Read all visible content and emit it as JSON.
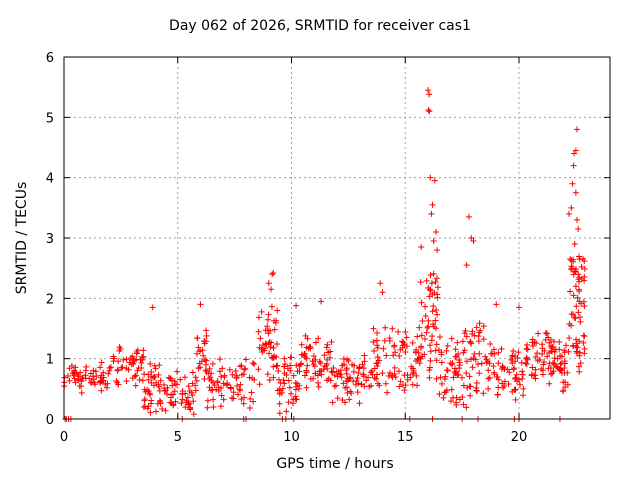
{
  "chart_data": {
    "type": "scatter",
    "title": "Day 062 of 2026, SRMTID for receiver cas1",
    "xlabel": "GPS time / hours",
    "ylabel": "SRMTID / TECUs",
    "xlim": [
      0,
      24
    ],
    "ylim": [
      0,
      6
    ],
    "xticks": [
      0,
      5,
      10,
      15,
      20
    ],
    "yticks": [
      0,
      1,
      2,
      3,
      4,
      5,
      6
    ],
    "grid": true,
    "marker": "+",
    "color": "#ff0000",
    "segments": [
      {
        "x0": 0.0,
        "x1": 2.0,
        "base": 0.65,
        "spread": 0.35,
        "n": 60
      },
      {
        "x0": 2.0,
        "x1": 3.5,
        "base": 0.85,
        "spread": 0.5,
        "n": 50
      },
      {
        "x0": 3.5,
        "x1": 4.2,
        "base": 0.5,
        "spread": 0.8,
        "n": 35
      },
      {
        "x0": 4.2,
        "x1": 5.8,
        "base": 0.35,
        "spread": 0.5,
        "n": 60
      },
      {
        "x0": 5.8,
        "x1": 6.3,
        "base": 1.0,
        "spread": 0.8,
        "n": 25
      },
      {
        "x0": 6.3,
        "x1": 8.5,
        "base": 0.55,
        "spread": 0.6,
        "n": 70
      },
      {
        "x0": 8.5,
        "x1": 9.4,
        "base": 1.1,
        "spread": 1.2,
        "n": 45
      },
      {
        "x0": 9.4,
        "x1": 10.4,
        "base": 0.5,
        "spread": 0.8,
        "n": 45
      },
      {
        "x0": 10.4,
        "x1": 11.8,
        "base": 0.9,
        "spread": 0.7,
        "n": 60
      },
      {
        "x0": 11.8,
        "x1": 13.5,
        "base": 0.6,
        "spread": 0.6,
        "n": 65
      },
      {
        "x0": 13.5,
        "x1": 15.6,
        "base": 0.9,
        "spread": 0.9,
        "n": 80
      },
      {
        "x0": 15.6,
        "x1": 16.5,
        "base": 1.4,
        "spread": 1.6,
        "n": 55
      },
      {
        "x0": 16.5,
        "x1": 17.5,
        "base": 0.7,
        "spread": 1.0,
        "n": 45
      },
      {
        "x0": 17.5,
        "x1": 18.5,
        "base": 0.8,
        "spread": 1.2,
        "n": 45
      },
      {
        "x0": 18.5,
        "x1": 20.2,
        "base": 0.7,
        "spread": 0.7,
        "n": 65
      },
      {
        "x0": 20.2,
        "x1": 21.6,
        "base": 0.9,
        "spread": 0.7,
        "n": 60
      },
      {
        "x0": 21.6,
        "x1": 22.2,
        "base": 0.8,
        "spread": 0.7,
        "n": 30
      },
      {
        "x0": 22.2,
        "x1": 22.9,
        "base": 1.6,
        "spread": 1.8,
        "n": 60
      }
    ],
    "peaks": [
      [
        16.0,
        5.45
      ],
      [
        16.05,
        5.38
      ],
      [
        16.02,
        5.12
      ],
      [
        16.06,
        5.1
      ],
      [
        16.1,
        4.0
      ],
      [
        16.3,
        3.95
      ],
      [
        16.2,
        3.55
      ],
      [
        16.15,
        3.4
      ],
      [
        16.35,
        3.1
      ],
      [
        16.25,
        2.95
      ],
      [
        15.7,
        2.85
      ],
      [
        16.4,
        2.8
      ],
      [
        17.8,
        3.35
      ],
      [
        17.9,
        3.0
      ],
      [
        18.0,
        2.95
      ],
      [
        17.7,
        2.55
      ],
      [
        9.2,
        2.42
      ],
      [
        9.15,
        2.4
      ],
      [
        9.0,
        2.25
      ],
      [
        9.1,
        2.15
      ],
      [
        13.9,
        2.25
      ],
      [
        14.0,
        2.1
      ],
      [
        11.3,
        1.95
      ],
      [
        10.2,
        1.88
      ],
      [
        3.9,
        1.85
      ],
      [
        6.0,
        1.9
      ],
      [
        19.0,
        1.9
      ],
      [
        20.0,
        1.85
      ],
      [
        22.55,
        4.8
      ],
      [
        22.5,
        4.45
      ],
      [
        22.42,
        4.4
      ],
      [
        22.4,
        4.2
      ],
      [
        22.35,
        3.9
      ],
      [
        22.5,
        3.75
      ],
      [
        22.3,
        3.5
      ],
      [
        22.55,
        3.3
      ],
      [
        22.2,
        3.4
      ],
      [
        22.6,
        3.15
      ],
      [
        22.45,
        2.9
      ],
      [
        22.25,
        2.65
      ],
      [
        22.6,
        2.4
      ],
      [
        22.5,
        2.2
      ],
      [
        22.4,
        2.05
      ],
      [
        22.65,
        1.95
      ]
    ],
    "zeros": [
      0.05,
      0.1,
      0.2,
      0.3,
      5.2,
      7.9,
      8.0,
      9.6,
      9.75,
      10.1,
      15.2,
      16.2,
      17.5,
      18.2,
      19.8,
      20.0,
      21.8
    ]
  }
}
